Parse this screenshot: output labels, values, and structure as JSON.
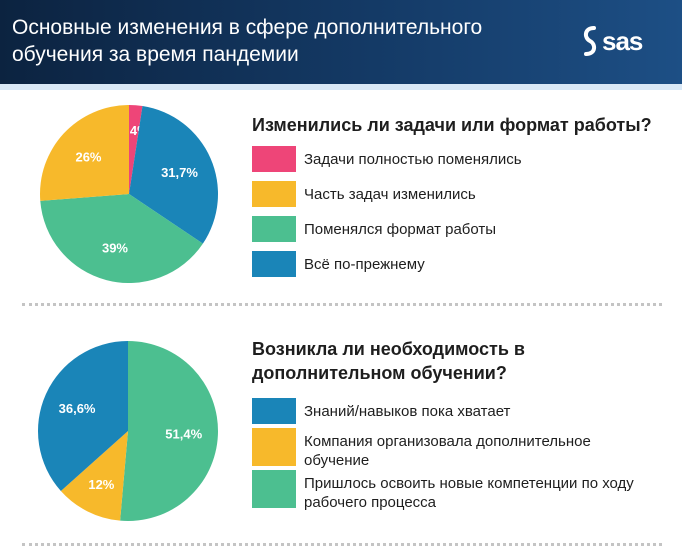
{
  "header": {
    "title": "Основные изменения в сфере дополнительного обучения за время пандемии",
    "logo_text": "sas"
  },
  "colors": {
    "pink": "#ee4578",
    "yellow": "#f7b92b",
    "green": "#4cbf90",
    "blue": "#1a85b8"
  },
  "chart_data": [
    {
      "type": "pie",
      "title": "Изменились ли задачи или формат работы?",
      "slices": [
        {
          "label": "Задачи полностью поменялись",
          "value": 2.4,
          "display": "2,4%",
          "color": "#ee4578"
        },
        {
          "label": "Всё по-прежнему",
          "value": 31.7,
          "display": "31,7%",
          "color": "#1a85b8"
        },
        {
          "label": "Поменялся формат работы",
          "value": 39,
          "display": "39%",
          "color": "#4cbf90"
        },
        {
          "label": "Часть задач изменились",
          "value": 26,
          "display": "26%",
          "color": "#f7b92b"
        }
      ],
      "legend": [
        {
          "label": "Задачи полностью поменялись",
          "color": "#ee4578"
        },
        {
          "label": "Часть задач изменились",
          "color": "#f7b92b"
        },
        {
          "label": "Поменялся формат работы",
          "color": "#4cbf90"
        },
        {
          "label": "Всё по-прежнему",
          "color": "#1a85b8"
        }
      ]
    },
    {
      "type": "pie",
      "title": "Возникла ли необходимость в дополнительном обучении?",
      "slices": [
        {
          "label": "Пришлось освоить новые компетенции по ходу рабочего процесса",
          "value": 51.4,
          "display": "51,4%",
          "color": "#4cbf90"
        },
        {
          "label": "Компания организовала дополнительное обучение",
          "value": 12,
          "display": "12%",
          "color": "#f7b92b"
        },
        {
          "label": "Знаний/навыков пока хватает",
          "value": 36.6,
          "display": "36,6%",
          "color": "#1a85b8"
        }
      ],
      "legend": [
        {
          "label": "Знаний/навыков пока хватает",
          "color": "#1a85b8"
        },
        {
          "label": "Компания организовала дополнительное обучение",
          "color": "#f7b92b"
        },
        {
          "label": "Пришлось освоить новые компетенции по ходу рабочего процесса",
          "color": "#4cbf90"
        }
      ]
    }
  ]
}
